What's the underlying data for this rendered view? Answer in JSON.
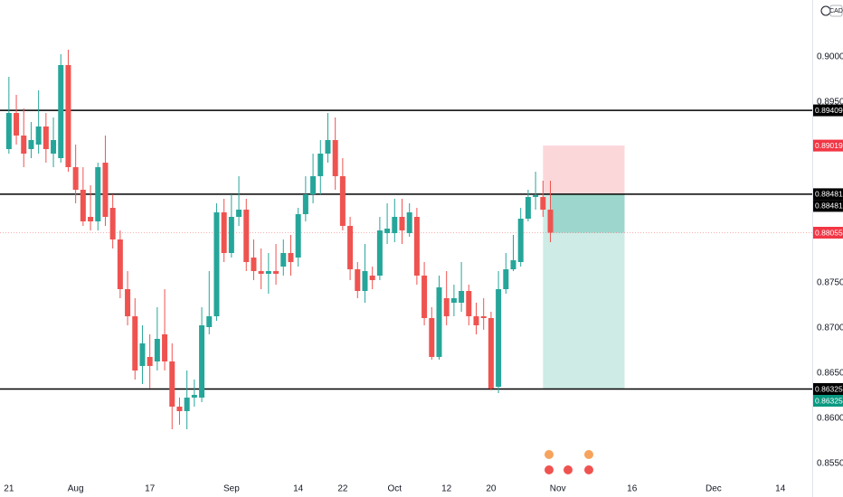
{
  "chart_data": {
    "type": "candlestick",
    "currency": "CAD",
    "x": [
      0,
      1,
      2,
      3,
      4,
      5,
      6,
      7,
      8,
      9,
      10,
      11,
      12,
      13,
      14,
      15,
      16,
      17,
      18,
      19,
      20,
      21,
      22,
      23,
      24,
      25,
      26,
      27,
      28,
      29,
      30,
      31,
      32,
      33,
      34,
      35,
      36,
      37,
      38,
      39,
      40,
      41,
      42,
      43,
      44,
      45,
      46,
      47,
      48,
      49,
      50,
      51,
      52,
      53,
      54,
      55,
      56,
      57,
      58,
      59,
      60,
      61,
      62,
      63,
      64,
      65,
      66,
      67,
      68,
      69,
      70,
      71,
      72,
      73
    ],
    "open": [
      0.8898,
      0.8938,
      0.8913,
      0.8898,
      0.8903,
      0.8923,
      0.8893,
      0.8888,
      0.8991,
      0.8878,
      0.8853,
      0.8823,
      0.8818,
      0.8883,
      0.8833,
      0.8798,
      0.8743,
      0.8713,
      0.8658,
      0.8668,
      0.8663,
      0.8693,
      0.8663,
      0.8613,
      0.8608,
      0.8623,
      0.8623,
      0.8701,
      0.8713,
      0.8828,
      0.8783,
      0.8823,
      0.8831,
      0.8778,
      0.8763,
      0.876,
      0.8763,
      0.8768,
      0.8783,
      0.8778,
      0.8826,
      0.8848,
      0.8868,
      0.8893,
      0.8908,
      0.8868,
      0.8813,
      0.8765,
      0.8741,
      0.8758,
      0.8758,
      0.8805,
      0.8805,
      0.8823,
      0.8805,
      0.8823,
      0.8758,
      0.8711,
      0.8668,
      0.8733,
      0.8728,
      0.8728,
      0.8741,
      0.8713,
      0.8713,
      0.8711,
      0.8635,
      0.8743,
      0.8765,
      0.8773,
      0.8821,
      0.8845,
      0.8845,
      0.8831
    ],
    "high": [
      0.8978,
      0.8958,
      0.8943,
      0.8928,
      0.8963,
      0.8938,
      0.8933,
      0.9003,
      0.9008,
      0.8903,
      0.8878,
      0.8858,
      0.8883,
      0.8913,
      0.8848,
      0.8808,
      0.8763,
      0.8733,
      0.8703,
      0.8693,
      0.8723,
      0.8743,
      0.8683,
      0.8623,
      0.8653,
      0.8643,
      0.8723,
      0.8763,
      0.8838,
      0.8843,
      0.8848,
      0.8868,
      0.8843,
      0.8798,
      0.8788,
      0.8783,
      0.8793,
      0.8798,
      0.8803,
      0.8833,
      0.8868,
      0.8893,
      0.8908,
      0.8938,
      0.8933,
      0.8888,
      0.8823,
      0.8773,
      0.8793,
      0.8768,
      0.8823,
      0.8838,
      0.8843,
      0.8843,
      0.8838,
      0.8833,
      0.8773,
      0.8723,
      0.8758,
      0.8763,
      0.8748,
      0.8773,
      0.8748,
      0.8728,
      0.8733,
      0.8718,
      0.8763,
      0.8783,
      0.8803,
      0.8833,
      0.8853,
      0.8873,
      0.8863,
      0.8863
    ],
    "low": [
      0.8893,
      0.8903,
      0.8878,
      0.8888,
      0.8893,
      0.8883,
      0.8878,
      0.8883,
      0.8873,
      0.8838,
      0.8813,
      0.8808,
      0.8808,
      0.8813,
      0.8788,
      0.8733,
      0.8703,
      0.8643,
      0.8638,
      0.8633,
      0.8653,
      0.8653,
      0.8588,
      0.8593,
      0.8588,
      0.8613,
      0.8618,
      0.8693,
      0.8708,
      0.8773,
      0.8778,
      0.8813,
      0.8763,
      0.8753,
      0.8743,
      0.8738,
      0.8748,
      0.8758,
      0.8758,
      0.8768,
      0.8818,
      0.8838,
      0.8848,
      0.8883,
      0.8853,
      0.8808,
      0.8753,
      0.8733,
      0.8728,
      0.8743,
      0.8753,
      0.8793,
      0.8795,
      0.8793,
      0.8801,
      0.8748,
      0.8703,
      0.8665,
      0.8665,
      0.8703,
      0.8713,
      0.8718,
      0.8703,
      0.8693,
      0.8698,
      0.8631,
      0.8628,
      0.8738,
      0.8763,
      0.8768,
      0.8818,
      0.8831,
      0.8823,
      0.8795
    ],
    "close": [
      0.8938,
      0.8913,
      0.8893,
      0.8908,
      0.8923,
      0.8898,
      0.8908,
      0.8991,
      0.8878,
      0.8853,
      0.8818,
      0.8818,
      0.8878,
      0.8823,
      0.8798,
      0.8743,
      0.8713,
      0.8653,
      0.8683,
      0.8658,
      0.8688,
      0.8663,
      0.8613,
      0.8608,
      0.8623,
      0.8626,
      0.8703,
      0.8713,
      0.8828,
      0.8783,
      0.8823,
      0.8831,
      0.8773,
      0.8763,
      0.876,
      0.8763,
      0.876,
      0.8783,
      0.8773,
      0.8826,
      0.8848,
      0.8868,
      0.8893,
      0.8908,
      0.8868,
      0.8813,
      0.8765,
      0.8741,
      0.8763,
      0.8753,
      0.8808,
      0.881,
      0.8823,
      0.8808,
      0.8828,
      0.8758,
      0.8711,
      0.8668,
      0.8745,
      0.8713,
      0.8733,
      0.8741,
      0.8713,
      0.8703,
      0.8711,
      0.8633,
      0.8743,
      0.8765,
      0.8775,
      0.8821,
      0.8845,
      0.8847,
      0.8831,
      0.88055
    ],
    "up_color": "#26a69a",
    "down_color": "#ef5350",
    "xlim": [
      -1.2,
      108.3
    ],
    "xticks": [
      {
        "value": 0,
        "label": "21"
      },
      {
        "value": 9,
        "label": "Aug"
      },
      {
        "value": 19,
        "label": "17"
      },
      {
        "value": 30,
        "label": "Sep"
      },
      {
        "value": 39,
        "label": "14"
      },
      {
        "value": 45,
        "label": "22"
      },
      {
        "value": 52,
        "label": "Oct"
      },
      {
        "value": 59,
        "label": "12"
      },
      {
        "value": 65,
        "label": "20"
      },
      {
        "value": 74,
        "label": "Nov"
      },
      {
        "value": 84,
        "label": "16"
      },
      {
        "value": 95,
        "label": "Dec"
      },
      {
        "value": 104,
        "label": "14"
      }
    ],
    "ylim": [
      0.8533,
      0.9063
    ],
    "yticks": [
      {
        "value": 0.855,
        "label": "0.85500"
      },
      {
        "value": 0.86,
        "label": "0.86000"
      },
      {
        "value": 0.865,
        "label": "0.86500"
      },
      {
        "value": 0.87,
        "label": "0.87000"
      },
      {
        "value": 0.875,
        "label": "0.87500"
      },
      {
        "value": 0.895,
        "label": "0.89500"
      },
      {
        "value": 0.9,
        "label": "0.90000"
      }
    ],
    "hlines": [
      0.89409,
      0.88481,
      0.86325
    ],
    "position": {
      "x_start": 72,
      "x_end": 83,
      "entry": 0.88481,
      "stop": 0.89019,
      "target": 0.86325
    }
  }
}
